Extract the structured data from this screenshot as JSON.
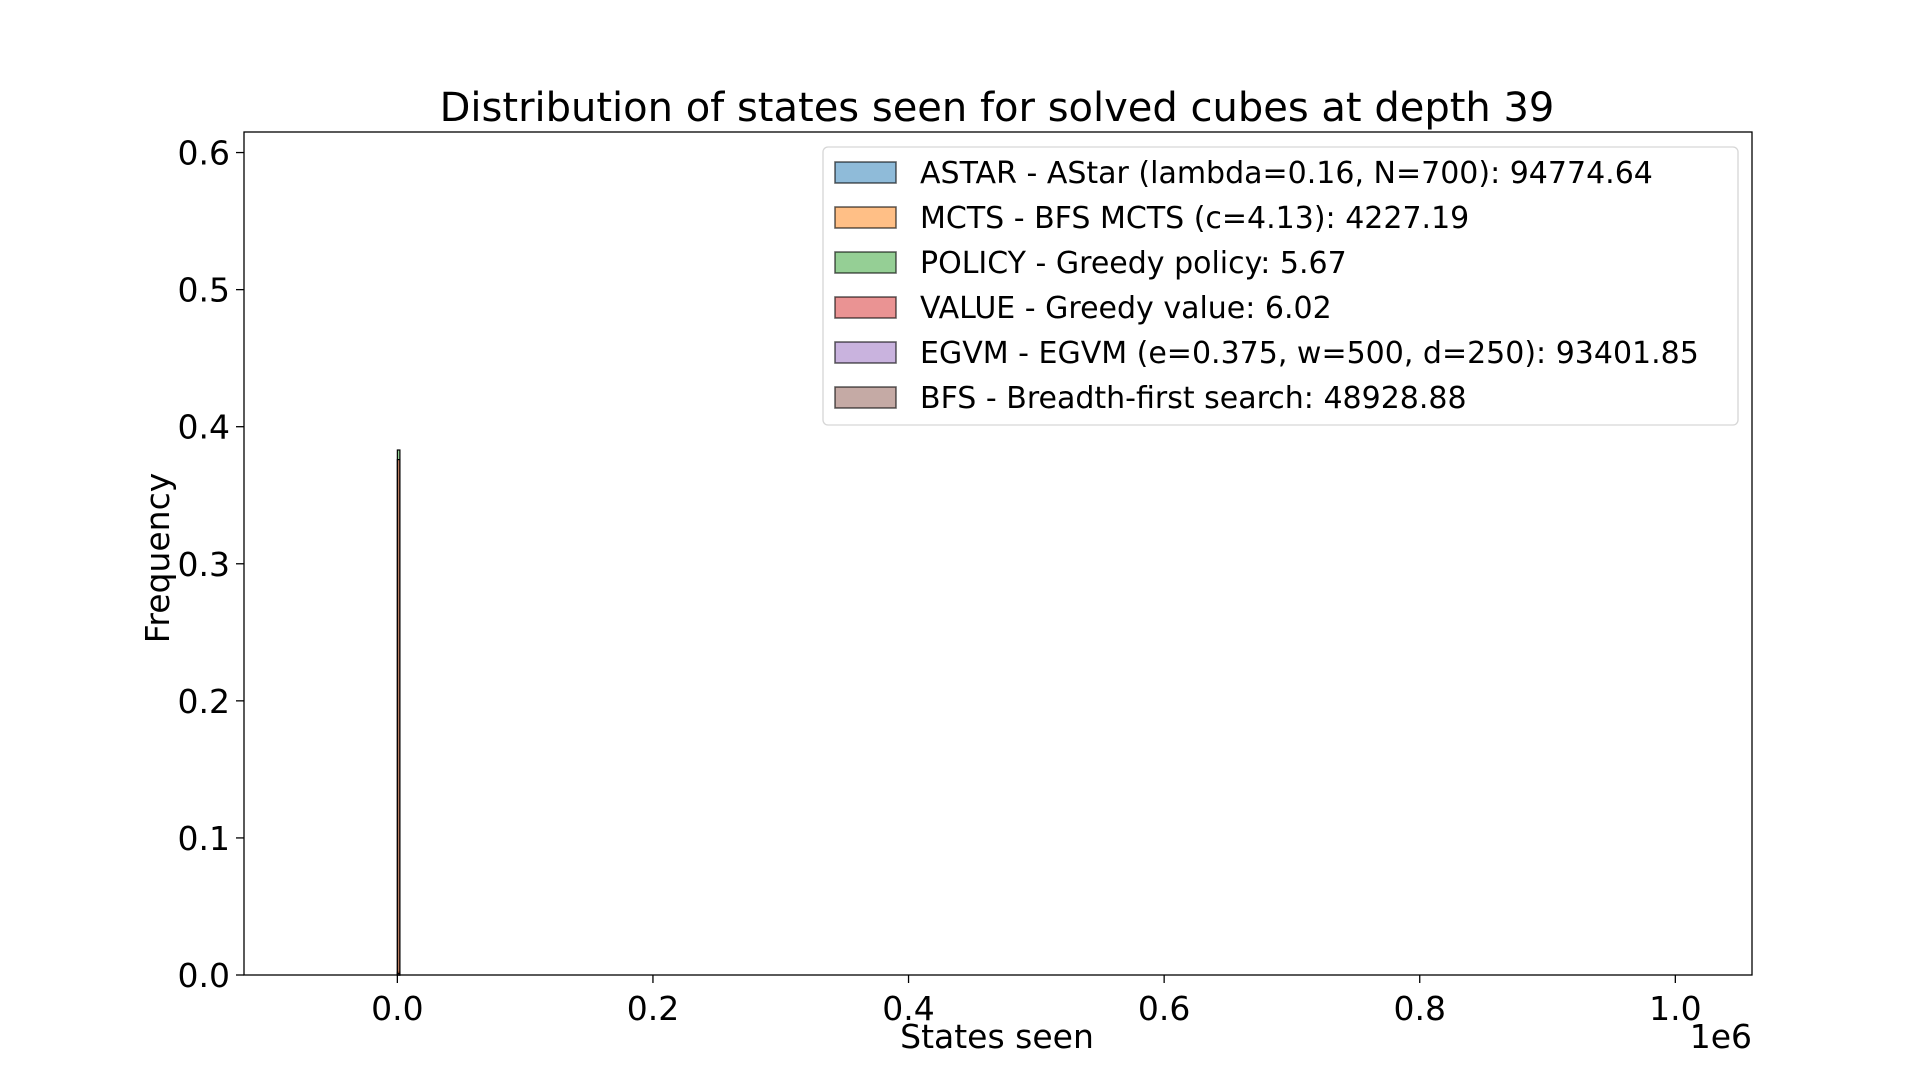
{
  "chart_data": {
    "type": "bar",
    "title": "Distribution of states seen for solved cubes at depth 39",
    "xlabel": "States seen",
    "ylabel": "Frequency",
    "x_offset_text": "1e6",
    "xlim": [
      -0.12,
      1.06
    ],
    "ylim": [
      0,
      0.615
    ],
    "xticks": [
      0.0,
      0.2,
      0.4,
      0.6,
      0.8,
      1.0
    ],
    "xtick_labels": [
      "0.0",
      "0.2",
      "0.4",
      "0.6",
      "0.8",
      "1.0"
    ],
    "yticks": [
      0.0,
      0.1,
      0.2,
      0.3,
      0.4,
      0.5,
      0.6
    ],
    "ytick_labels": [
      "0.0",
      "0.1",
      "0.2",
      "0.3",
      "0.4",
      "0.5",
      "0.6"
    ],
    "legend_position": "top-right",
    "grid": false,
    "series": [
      {
        "name": "ASTAR - AStar (lambda=0.16, N=700): 94774.64",
        "color": "#1f77b4",
        "bins": [
          {
            "x": 0.0,
            "value": 0.002
          }
        ]
      },
      {
        "name": "MCTS - BFS MCTS (c=4.13): 4227.19",
        "color": "#ff7f0e",
        "bins": [
          {
            "x": 0.0,
            "value": 0.0
          }
        ]
      },
      {
        "name": "POLICY - Greedy policy: 5.67",
        "color": "#2ca02c",
        "bins": [
          {
            "x": 0.0,
            "value": 0.383
          }
        ]
      },
      {
        "name": "VALUE - Greedy value: 6.02",
        "color": "#d62728",
        "bins": [
          {
            "x": 0.0,
            "value": 0.376
          }
        ]
      },
      {
        "name": "EGVM - EGVM (e=0.375, w=500, d=250): 93401.85",
        "color": "#9467bd",
        "bins": [
          {
            "x": 0.0,
            "value": 0.001
          }
        ]
      },
      {
        "name": "BFS - Breadth-first search: 48928.88",
        "color": "#8c564b",
        "bins": [
          {
            "x": 0.0,
            "value": 0.0
          }
        ]
      }
    ]
  }
}
